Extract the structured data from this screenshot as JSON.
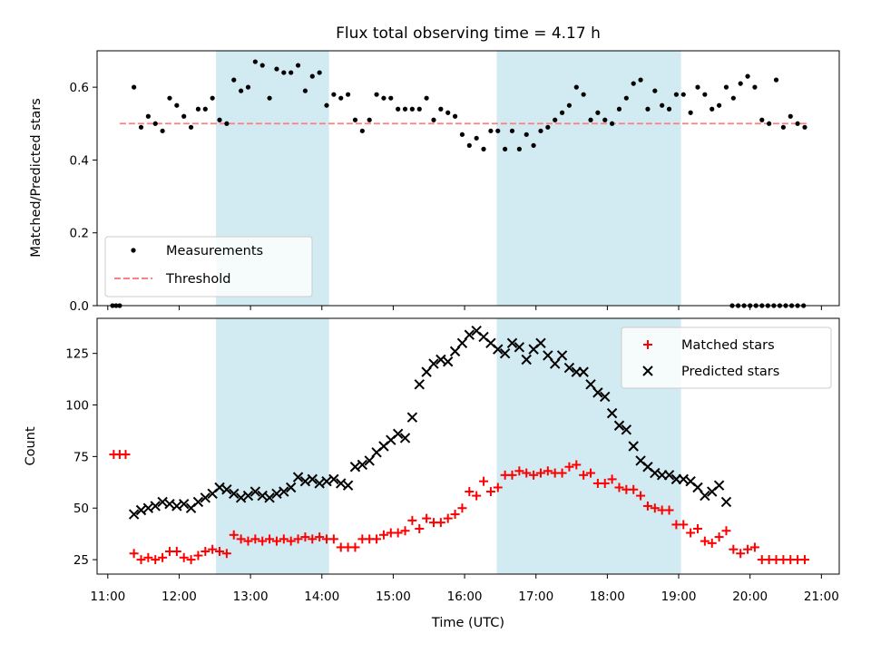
{
  "chart_data": [
    {
      "type": "scatter",
      "title": "Flux total observing time = 4.17 h",
      "xlabel": "",
      "ylabel": "Matched/Predicted stars",
      "xlim": [
        "10:51",
        "21:15"
      ],
      "ylim": [
        0,
        0.7
      ],
      "yticks": [
        0.0,
        0.2,
        0.4,
        0.6
      ],
      "ytick_labels": [
        "0.0",
        "0.2",
        "0.4",
        "0.6"
      ],
      "grid": false,
      "legend_position": "lower-left",
      "observing_windows": [
        [
          "12:31",
          "14:06"
        ],
        [
          "16:27",
          "19:02"
        ]
      ],
      "window_color": "#add8e6",
      "series": [
        {
          "name": "Measurements",
          "marker": "dot",
          "color": "#000000",
          "x": [
            "11:04",
            "11:07",
            "11:10",
            "11:22",
            "11:28",
            "11:34",
            "11:40",
            "11:46",
            "11:52",
            "11:58",
            "12:04",
            "12:10",
            "12:16",
            "12:22",
            "12:28",
            "12:34",
            "12:40",
            "12:46",
            "12:52",
            "12:58",
            "13:04",
            "13:10",
            "13:16",
            "13:22",
            "13:28",
            "13:34",
            "13:40",
            "13:46",
            "13:52",
            "13:58",
            "14:04",
            "14:10",
            "14:16",
            "14:22",
            "14:28",
            "14:34",
            "14:40",
            "14:46",
            "14:52",
            "14:58",
            "15:04",
            "15:10",
            "15:16",
            "15:22",
            "15:28",
            "15:34",
            "15:40",
            "15:46",
            "15:52",
            "15:58",
            "16:04",
            "16:10",
            "16:16",
            "16:22",
            "16:28",
            "16:34",
            "16:40",
            "16:46",
            "16:52",
            "16:58",
            "17:04",
            "17:10",
            "17:16",
            "17:22",
            "17:28",
            "17:34",
            "17:40",
            "17:46",
            "17:52",
            "17:58",
            "18:04",
            "18:10",
            "18:16",
            "18:22",
            "18:28",
            "18:34",
            "18:40",
            "18:46",
            "18:52",
            "18:58",
            "19:04",
            "19:10",
            "19:16",
            "19:22",
            "19:28",
            "19:34",
            "19:40",
            "19:46",
            "19:52",
            "19:58",
            "20:04",
            "20:10",
            "20:16",
            "20:22",
            "20:28",
            "20:34",
            "20:40",
            "20:46"
          ],
          "y": [
            0.0,
            0.0,
            0.0,
            0.6,
            0.49,
            0.52,
            0.5,
            0.48,
            0.57,
            0.55,
            0.52,
            0.49,
            0.54,
            0.54,
            0.57,
            0.51,
            0.5,
            0.62,
            0.59,
            0.6,
            0.67,
            0.66,
            0.57,
            0.65,
            0.64,
            0.64,
            0.66,
            0.59,
            0.63,
            0.64,
            0.55,
            0.58,
            0.57,
            0.58,
            0.51,
            0.48,
            0.51,
            0.58,
            0.57,
            0.57,
            0.54,
            0.54,
            0.54,
            0.54,
            0.57,
            0.51,
            0.54,
            0.53,
            0.52,
            0.47,
            0.44,
            0.46,
            0.43,
            0.48,
            0.48,
            0.43,
            0.48,
            0.43,
            0.47,
            0.44,
            0.48,
            0.49,
            0.51,
            0.53,
            0.55,
            0.6,
            0.58,
            0.51,
            0.53,
            0.51,
            0.5,
            0.54,
            0.57,
            0.61,
            0.62,
            0.54,
            0.59,
            0.55,
            0.54,
            0.58,
            0.58,
            0.53,
            0.6,
            0.58,
            0.54,
            0.55,
            0.6,
            0.57,
            0.61,
            0.63,
            0.6,
            0.51,
            0.5,
            0.62,
            0.49,
            0.52,
            0.5,
            0.49
          ],
          "zero_points_x": [
            "19:45",
            "19:50",
            "19:55",
            "20:00",
            "20:05",
            "20:10",
            "20:15",
            "20:20",
            "20:25",
            "20:30",
            "20:35",
            "20:40",
            "20:45"
          ]
        },
        {
          "name": "Threshold",
          "marker": "dashed-line",
          "color": "#ff7f7f",
          "x": [
            "11:10",
            "20:48"
          ],
          "y": [
            0.5,
            0.5
          ]
        }
      ]
    },
    {
      "type": "scatter",
      "title": "",
      "xlabel": "Time (UTC)",
      "ylabel": "Count",
      "xlim": [
        "10:51",
        "21:15"
      ],
      "ylim": [
        18,
        142
      ],
      "yticks": [
        25,
        50,
        75,
        100,
        125
      ],
      "ytick_labels": [
        "25",
        "50",
        "75",
        "100",
        "125"
      ],
      "xticks": [
        "11:00",
        "12:00",
        "13:00",
        "14:00",
        "15:00",
        "16:00",
        "17:00",
        "18:00",
        "19:00",
        "20:00",
        "21:00"
      ],
      "grid": false,
      "legend_position": "upper-right",
      "observing_windows": [
        [
          "12:31",
          "14:06"
        ],
        [
          "16:27",
          "19:02"
        ]
      ],
      "window_color": "#add8e6",
      "series": [
        {
          "name": "Matched stars",
          "marker": "plus",
          "color": "#ff0000",
          "x": [
            "11:05",
            "11:10",
            "11:15",
            "11:22",
            "11:28",
            "11:34",
            "11:40",
            "11:46",
            "11:52",
            "11:58",
            "12:04",
            "12:10",
            "12:16",
            "12:22",
            "12:28",
            "12:34",
            "12:40",
            "12:46",
            "12:52",
            "12:58",
            "13:04",
            "13:10",
            "13:16",
            "13:22",
            "13:28",
            "13:34",
            "13:40",
            "13:46",
            "13:52",
            "13:58",
            "14:04",
            "14:10",
            "14:16",
            "14:22",
            "14:28",
            "14:34",
            "14:40",
            "14:46",
            "14:52",
            "14:58",
            "15:04",
            "15:10",
            "15:16",
            "15:22",
            "15:28",
            "15:34",
            "15:40",
            "15:46",
            "15:52",
            "15:58",
            "16:04",
            "16:10",
            "16:16",
            "16:22",
            "16:28",
            "16:34",
            "16:40",
            "16:46",
            "16:52",
            "16:58",
            "17:04",
            "17:10",
            "17:16",
            "17:22",
            "17:28",
            "17:34",
            "17:40",
            "17:46",
            "17:52",
            "17:58",
            "18:04",
            "18:10",
            "18:16",
            "18:22",
            "18:28",
            "18:34",
            "18:40",
            "18:46",
            "18:52",
            "18:58",
            "19:04",
            "19:10",
            "19:16",
            "19:22",
            "19:28",
            "19:34",
            "19:40",
            "19:46",
            "19:52",
            "19:58",
            "20:04",
            "20:10",
            "20:16",
            "20:22",
            "20:28",
            "20:34",
            "20:40",
            "20:46"
          ],
          "y": [
            76,
            76,
            76,
            28,
            25,
            26,
            25,
            26,
            29,
            29,
            26,
            25,
            27,
            29,
            30,
            29,
            28,
            37,
            35,
            34,
            35,
            34,
            35,
            34,
            35,
            34,
            35,
            36,
            35,
            36,
            35,
            35,
            31,
            31,
            31,
            35,
            35,
            35,
            37,
            38,
            38,
            39,
            44,
            40,
            45,
            43,
            43,
            45,
            47,
            50,
            58,
            56,
            63,
            58,
            60,
            66,
            66,
            68,
            67,
            66,
            67,
            68,
            67,
            67,
            70,
            71,
            66,
            67,
            62,
            62,
            64,
            60,
            59,
            59,
            56,
            51,
            50,
            49,
            49,
            42,
            42,
            38,
            40,
            34,
            33,
            36,
            39,
            30,
            28,
            30,
            31,
            25,
            25,
            25,
            25,
            25,
            25,
            25
          ],
          "note": ""
        },
        {
          "name": "Predicted stars",
          "marker": "x",
          "color": "#000000",
          "x": [
            "11:22",
            "11:28",
            "11:34",
            "11:40",
            "11:46",
            "11:52",
            "11:58",
            "12:04",
            "12:10",
            "12:16",
            "12:22",
            "12:28",
            "12:34",
            "12:40",
            "12:46",
            "12:52",
            "12:58",
            "13:04",
            "13:10",
            "13:16",
            "13:22",
            "13:28",
            "13:34",
            "13:40",
            "13:46",
            "13:52",
            "13:58",
            "14:04",
            "14:10",
            "14:16",
            "14:22",
            "14:28",
            "14:34",
            "14:40",
            "14:46",
            "14:52",
            "14:58",
            "15:04",
            "15:10",
            "15:16",
            "15:22",
            "15:28",
            "15:34",
            "15:40",
            "15:46",
            "15:52",
            "15:58",
            "16:04",
            "16:10",
            "16:16",
            "16:22",
            "16:28",
            "16:34",
            "16:40",
            "16:46",
            "16:52",
            "16:58",
            "17:04",
            "17:10",
            "17:16",
            "17:22",
            "17:28",
            "17:34",
            "17:40",
            "17:46",
            "17:52",
            "17:58",
            "18:04",
            "18:10",
            "18:16",
            "18:22",
            "18:28",
            "18:34",
            "18:40",
            "18:46",
            "18:52",
            "18:58",
            "19:04",
            "19:10",
            "19:16",
            "19:22",
            "19:28",
            "19:34",
            "19:40"
          ],
          "y": [
            47,
            49,
            50,
            51,
            53,
            52,
            51,
            52,
            50,
            53,
            55,
            57,
            60,
            59,
            57,
            55,
            56,
            58,
            56,
            55,
            57,
            58,
            60,
            65,
            63,
            64,
            62,
            63,
            64,
            62,
            61,
            70,
            71,
            73,
            77,
            80,
            83,
            86,
            84,
            94,
            110,
            116,
            120,
            122,
            121,
            126,
            130,
            134,
            136,
            133,
            130,
            127,
            125,
            130,
            128,
            122,
            127,
            130,
            124,
            120,
            124,
            118,
            116,
            116,
            110,
            106,
            104,
            96,
            90,
            88,
            80,
            73,
            70,
            67,
            66,
            66,
            64,
            64,
            63,
            60,
            56,
            58,
            61,
            53
          ]
        }
      ]
    }
  ]
}
